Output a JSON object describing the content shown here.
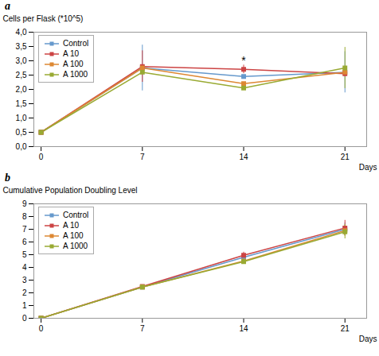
{
  "chart_data": [
    {
      "type": "line",
      "title": "a",
      "xlabel": "Days",
      "ylabel": "Cells per Flask (*10^5)",
      "x": [
        0,
        7,
        14,
        21
      ],
      "xlim": [
        -0.5,
        22.5
      ],
      "xticks": [
        0,
        7,
        14,
        21
      ],
      "ylim": [
        0,
        4.0
      ],
      "yticks": [
        {
          "value": 0.0,
          "label": "0,0"
        },
        {
          "value": 0.5,
          "label": "0,5"
        },
        {
          "value": 1.0,
          "label": "1,0"
        },
        {
          "value": 1.5,
          "label": "1,5"
        },
        {
          "value": 2.0,
          "label": "2,0"
        },
        {
          "value": 2.5,
          "label": "2,5"
        },
        {
          "value": 3.0,
          "label": "3,0"
        },
        {
          "value": 3.5,
          "label": "3,5"
        },
        {
          "value": 4.0,
          "label": "4,0"
        }
      ],
      "series": [
        {
          "name": "Control",
          "color": "#6699CC",
          "values": [
            0.5,
            2.75,
            2.45,
            2.6
          ],
          "errors": [
            0,
            0.8,
            0.0,
            0.72
          ]
        },
        {
          "name": "A 10",
          "color": "#CC4444",
          "values": [
            0.5,
            2.8,
            2.7,
            2.55
          ],
          "errors": [
            0,
            0.55,
            0.15,
            0.0
          ]
        },
        {
          "name": "A 100",
          "color": "#DD8833",
          "values": [
            0.5,
            2.75,
            2.2,
            2.6
          ],
          "errors": [
            0,
            0.0,
            0.0,
            0.0
          ]
        },
        {
          "name": "A 1000",
          "color": "#99AA33",
          "values": [
            0.5,
            2.6,
            2.05,
            2.75
          ],
          "errors": [
            0,
            0.0,
            0.0,
            0.72
          ]
        }
      ],
      "annotations": [
        {
          "text": "*",
          "x": 14,
          "y": 2.88
        }
      ],
      "legend": "upper left",
      "marker": "square",
      "line_style": "solid"
    },
    {
      "type": "line",
      "title": "b",
      "xlabel": "Days",
      "ylabel": "Cumulative Population Doubling Level",
      "x": [
        0,
        7,
        14,
        21
      ],
      "xlim": [
        -0.5,
        22.5
      ],
      "xticks": [
        0,
        7,
        14,
        21
      ],
      "ylim": [
        0,
        9
      ],
      "yticks": [
        0,
        1,
        2,
        3,
        4,
        5,
        6,
        7,
        8,
        9
      ],
      "series": [
        {
          "name": "Control",
          "color": "#6699CC",
          "values": [
            0,
            2.45,
            4.8,
            7.0
          ],
          "errors": [
            0,
            0.1,
            0.2,
            0.5
          ]
        },
        {
          "name": "A 10",
          "color": "#CC4444",
          "values": [
            0,
            2.5,
            4.95,
            7.1
          ],
          "errors": [
            0,
            0.1,
            0.25,
            0.6
          ]
        },
        {
          "name": "A 100",
          "color": "#DD8833",
          "values": [
            0,
            2.45,
            4.5,
            6.9
          ],
          "errors": [
            0,
            0.1,
            0.15,
            0.45
          ]
        },
        {
          "name": "A 1000",
          "color": "#99AA33",
          "values": [
            0,
            2.45,
            4.45,
            6.8
          ],
          "errors": [
            0,
            0.1,
            0.15,
            0.55
          ]
        }
      ],
      "legend": "upper left",
      "marker": "square",
      "line_style": "solid"
    }
  ]
}
